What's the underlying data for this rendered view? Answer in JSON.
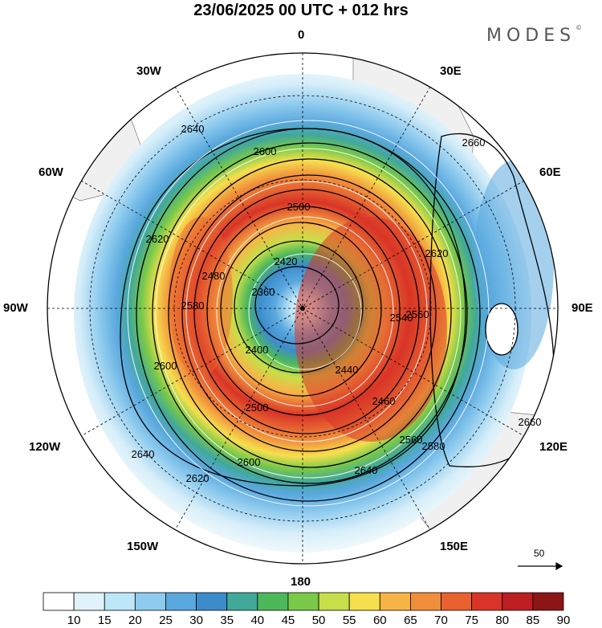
{
  "title": "23/06/2025  00 UTC  + 012 hrs",
  "logo": "MODES",
  "logo_mark": "©",
  "longitude_labels": {
    "top": "0",
    "bottom": "180",
    "left": "90W",
    "right": "90E",
    "upper_left_1": "30W",
    "upper_left_2": "60W",
    "upper_right_1": "30E",
    "upper_right_2": "60E",
    "lower_left_1": "120W",
    "lower_left_2": "150W",
    "lower_right_1": "120E",
    "lower_right_2": "150E"
  },
  "contour_labels": [
    "2360",
    "2400",
    "2420",
    "2440",
    "2460",
    "2480",
    "2500",
    "2540",
    "2560",
    "2580",
    "2600",
    "2620",
    "2640",
    "2660"
  ],
  "reference_vector": "50",
  "colorbar": {
    "ticks": [
      "10",
      "15",
      "20",
      "25",
      "30",
      "35",
      "40",
      "45",
      "50",
      "55",
      "60",
      "65",
      "70",
      "75",
      "80",
      "85",
      "90"
    ],
    "colors": [
      "#ffffff",
      "#e0f3fb",
      "#bde6f7",
      "#8ecbee",
      "#5aa8de",
      "#3c8ccc",
      "#41a89a",
      "#4cb85a",
      "#7ac948",
      "#c6df4a",
      "#f6df4e",
      "#f7b446",
      "#f18e3b",
      "#e9612e",
      "#d93427",
      "#bc1e22",
      "#8c1518"
    ]
  }
}
